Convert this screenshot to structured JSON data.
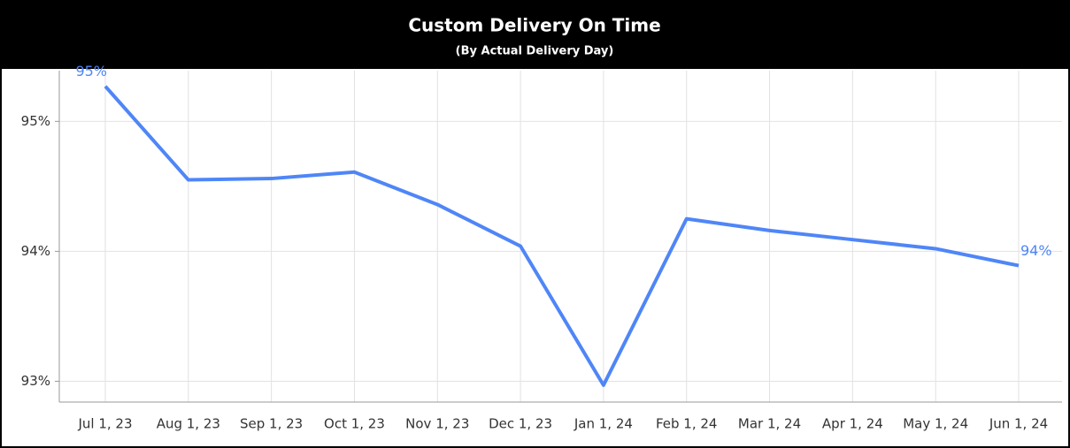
{
  "chart_data": {
    "type": "line",
    "title": "Custom Delivery On Time",
    "subtitle": "(By Actual Delivery Day)",
    "categories": [
      "Jul 1, 23",
      "Aug 1, 23",
      "Sep 1, 23",
      "Oct 1, 23",
      "Nov 1, 23",
      "Dec 1, 23",
      "Jan 1, 24",
      "Feb 1, 24",
      "Mar 1, 24",
      "Apr 1, 24",
      "May 1, 24",
      "Jun 1, 24"
    ],
    "series": [
      {
        "name": "On Time",
        "color": "#4f86f7",
        "values": [
          95.27,
          94.55,
          94.56,
          94.61,
          94.36,
          94.04,
          92.97,
          94.25,
          94.16,
          94.09,
          94.02,
          93.89
        ],
        "value_labels": [
          "95%",
          null,
          null,
          null,
          null,
          null,
          null,
          null,
          null,
          null,
          null,
          "94%"
        ]
      }
    ],
    "ylim": [
      92.84,
      95.39
    ],
    "yticks": [
      {
        "value": 93,
        "label": "93%"
      },
      {
        "value": 94,
        "label": "94%"
      },
      {
        "value": 95,
        "label": "95%"
      }
    ],
    "grid": true
  }
}
